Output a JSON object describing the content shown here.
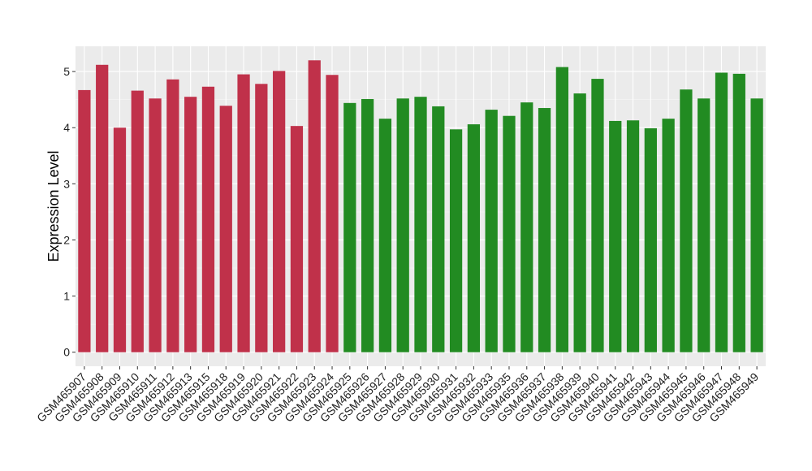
{
  "chart_data": {
    "type": "bar",
    "ylabel": "Expression Level",
    "xlabel": "",
    "ylim": [
      -0.25,
      5.45
    ],
    "yticks": [
      0,
      1,
      2,
      3,
      4,
      5
    ],
    "grid": true,
    "categories": [
      "GSM465907",
      "GSM465908",
      "GSM465909",
      "GSM465910",
      "GSM465911",
      "GSM465912",
      "GSM465913",
      "GSM465915",
      "GSM465918",
      "GSM465919",
      "GSM465920",
      "GSM465921",
      "GSM465922",
      "GSM465923",
      "GSM465924",
      "GSM465925",
      "GSM465926",
      "GSM465927",
      "GSM465928",
      "GSM465929",
      "GSM465930",
      "GSM465931",
      "GSM465932",
      "GSM465933",
      "GSM465935",
      "GSM465936",
      "GSM465937",
      "GSM465938",
      "GSM465939",
      "GSM465940",
      "GSM465941",
      "GSM465942",
      "GSM465943",
      "GSM465944",
      "GSM465945",
      "GSM465946",
      "GSM465947",
      "GSM465948",
      "GSM465949"
    ],
    "values": [
      4.67,
      5.12,
      4.0,
      4.66,
      4.52,
      4.86,
      4.55,
      4.73,
      4.39,
      4.95,
      4.78,
      5.01,
      4.03,
      5.2,
      4.94,
      4.44,
      4.51,
      4.16,
      4.52,
      4.55,
      4.38,
      3.97,
      4.06,
      4.32,
      4.21,
      4.45,
      4.35,
      5.08,
      4.61,
      4.87,
      4.12,
      4.13,
      3.99,
      4.16,
      4.68,
      4.52,
      4.98,
      4.96,
      4.52
    ],
    "groups": [
      "red",
      "red",
      "red",
      "red",
      "red",
      "red",
      "red",
      "red",
      "red",
      "red",
      "red",
      "red",
      "red",
      "red",
      "red",
      "green",
      "green",
      "green",
      "green",
      "green",
      "green",
      "green",
      "green",
      "green",
      "green",
      "green",
      "green",
      "green",
      "green",
      "green",
      "green",
      "green",
      "green",
      "green",
      "green",
      "green",
      "green",
      "green",
      "green"
    ],
    "colors": {
      "red": "#c0314a",
      "green": "#228b22",
      "panel": "#ebebeb",
      "grid_major": "#ffffff",
      "grid_minor": "#f5f5f5"
    }
  }
}
